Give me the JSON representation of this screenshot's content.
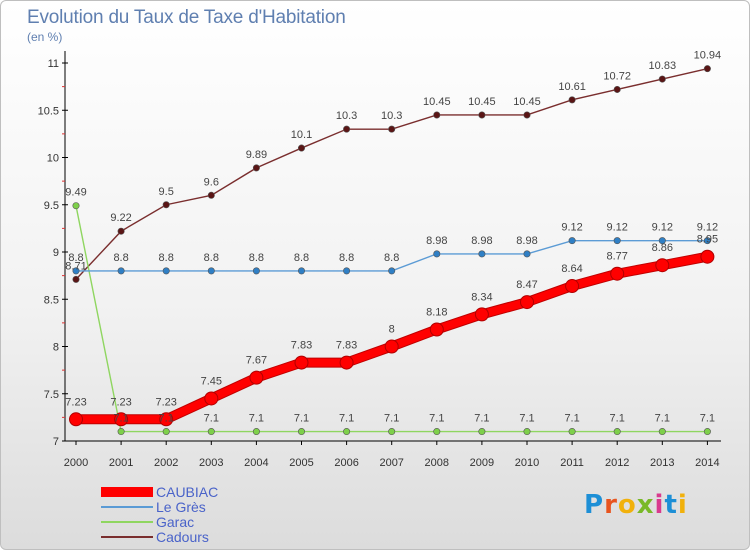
{
  "header": {
    "title": "Evolution du Taux de Taxe d'Habitation",
    "subtitle": "(en %)"
  },
  "brand": {
    "text": "Proxiti",
    "letter_colors": [
      "#1d8fd6",
      "#e8541e",
      "#f1b10c",
      "#79b928",
      "#d93a8e",
      "#1d8fd6",
      "#f1b10c"
    ]
  },
  "chart_data": {
    "type": "line",
    "title": "Evolution du Taux de Taxe d'Habitation",
    "ylabel": "(en %)",
    "x": [
      "2000",
      "2001",
      "2002",
      "2003",
      "2004",
      "2005",
      "2006",
      "2007",
      "2008",
      "2009",
      "2010",
      "2011",
      "2012",
      "2013",
      "2014"
    ],
    "ylim": [
      7,
      11
    ],
    "yticks": [
      7,
      7.5,
      8,
      8.5,
      9,
      9.5,
      10,
      10.5,
      11
    ],
    "ytick_labels": [
      "7",
      "7.5",
      "8",
      "8.5",
      "9",
      "9.5",
      "10",
      "10.5",
      "11"
    ],
    "grid": false,
    "legend_position": "bottom-left",
    "series": [
      {
        "name": "CAUBIAC",
        "color": "#ff0000",
        "marker_fill": "#ff0000",
        "emphasis": true,
        "values": [
          7.23,
          7.23,
          7.23,
          7.45,
          7.67,
          7.83,
          7.83,
          8,
          8.18,
          8.34,
          8.47,
          8.64,
          8.77,
          8.86,
          8.95
        ],
        "labels": [
          "7.23",
          "7.23",
          "7.23",
          "7.45",
          "7.67",
          "7.83",
          "7.83",
          "8",
          "8.18",
          "8.34",
          "8.47",
          "8.64",
          "8.77",
          "8.86",
          "8.95"
        ]
      },
      {
        "name": "Le Grès",
        "color": "#5b9bd5",
        "marker_fill": "#2f7fc5",
        "values": [
          8.8,
          8.8,
          8.8,
          8.8,
          8.8,
          8.8,
          8.8,
          8.8,
          8.98,
          8.98,
          8.98,
          9.12,
          9.12,
          9.12,
          9.12
        ],
        "labels": [
          "8.8",
          "8.8",
          "8.8",
          "8.8",
          "8.8",
          "8.8",
          "8.8",
          "8.8",
          "8.98",
          "8.98",
          "8.98",
          "9.12",
          "9.12",
          "9.12",
          "9.12"
        ]
      },
      {
        "name": "Garac",
        "color": "#8fd660",
        "marker_fill": "#7ed04a",
        "values": [
          9.49,
          7.1,
          7.1,
          7.1,
          7.1,
          7.1,
          7.1,
          7.1,
          7.1,
          7.1,
          7.1,
          7.1,
          7.1,
          7.1,
          7.1
        ],
        "labels": [
          "9.49",
          "7.1",
          "7.1",
          "7.1",
          "7.1",
          "7.1",
          "7.1",
          "7.1",
          "7.1",
          "7.1",
          "7.1",
          "7.1",
          "7.1",
          "7.1",
          "7.1"
        ]
      },
      {
        "name": "Cadours",
        "color": "#7a2e2e",
        "marker_fill": "#5a1515",
        "values": [
          8.71,
          9.22,
          9.5,
          9.6,
          9.89,
          10.1,
          10.3,
          10.3,
          10.45,
          10.45,
          10.45,
          10.61,
          10.72,
          10.83,
          10.94
        ],
        "labels": [
          "8.71",
          "9.22",
          "9.5",
          "9.6",
          "9.89",
          "10.1",
          "10.3",
          "10.3",
          "10.45",
          "10.45",
          "10.45",
          "10.61",
          "10.72",
          "10.83",
          "10.94"
        ]
      }
    ]
  }
}
